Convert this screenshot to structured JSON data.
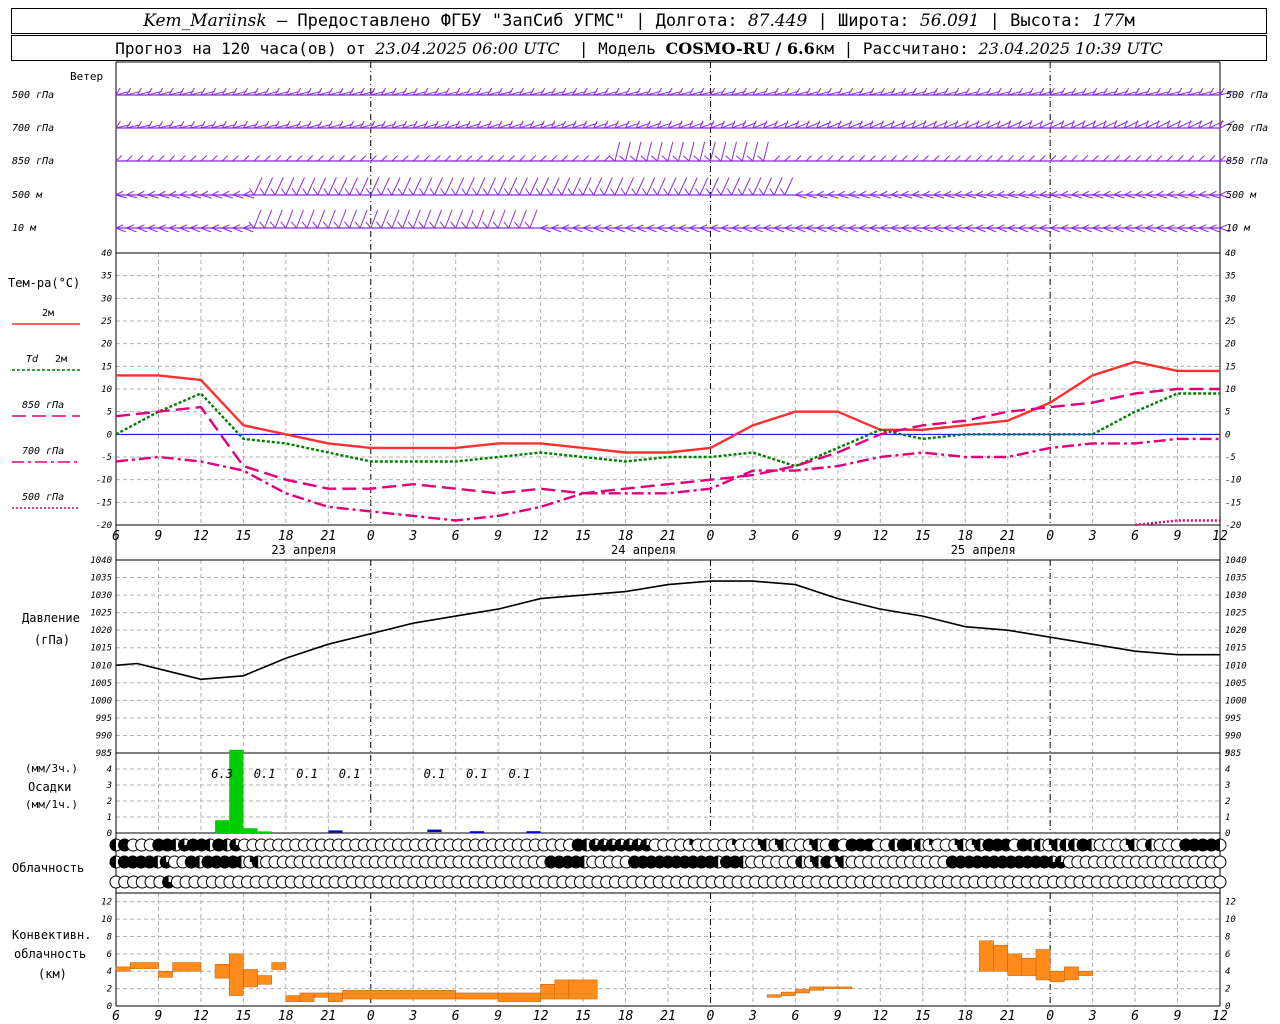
{
  "header": {
    "station": "Kem_Mariinsk",
    "provider": "– Предоставлено ФГБУ \"ЗапСиб УГМС\"",
    "lon_label": "Долгота:",
    "lon": "87.449",
    "lat_label": "Широта:",
    "lat": "56.091",
    "alt_label": "Высота:",
    "alt": "177",
    "alt_unit": "м",
    "forecast_label": "Прогноз на 120 часа(ов) от",
    "forecast_time": "23.04.2025 06:00 UTC",
    "model_label": "Модель",
    "model": "COSMO-RU / 6.6",
    "model_unit": "км",
    "calc_label": "Рассчитано:",
    "calc_time": "23.04.2025 10:39 UTC"
  },
  "labels": {
    "wind": "Ветер",
    "temp": "Тем-ра(°С)",
    "t2m": "2м",
    "td": "Td",
    "td2m": "2м",
    "l850": "850 гПа",
    "l700": "700 гПа",
    "l500": "500 гПа",
    "pressure": "Давление",
    "pressure_unit": "(гПа)",
    "precip_unit1": "(мм/3ч.)",
    "precip": "Осадки",
    "precip_unit2": "(мм/1ч.)",
    "cloud": "Облачность",
    "conv1": "Конвективн.",
    "conv2": "облачность",
    "conv3": "(км)"
  },
  "wind_levels": [
    "500 гПа",
    "700 гПа",
    "850 гПа",
    "500 м",
    "10  м"
  ],
  "time_ticks": [
    "6",
    "9",
    "12",
    "15",
    "18",
    "21",
    "0",
    "3",
    "6",
    "9",
    "12",
    "15",
    "18",
    "21",
    "0",
    "3",
    "6",
    "9",
    "12",
    "15",
    "18",
    "21",
    "0",
    "3",
    "6",
    "9",
    "12"
  ],
  "day_labels": [
    "23 апреля",
    "24 апреля",
    "25 апреля"
  ],
  "colors": {
    "t2m": "#ff3030",
    "td": "#008000",
    "levels": "#e0007a",
    "wind": "#8a2be2",
    "precip_3h": "#00cc00",
    "precip_1h": "#0000cc",
    "convective": "#ff8c1a",
    "zero_line": "#0000ff"
  },
  "chart_data": [
    {
      "type": "line",
      "title": "Тем-ра(°С)",
      "ylim": [
        -20,
        40
      ],
      "yticks": [
        "-20",
        "-15",
        "-10",
        "-5",
        "0",
        "5",
        "10",
        "15",
        "20",
        "25",
        "30",
        "35",
        "40"
      ],
      "x_hours": [
        0,
        3,
        6,
        9,
        12,
        15,
        18,
        21,
        24,
        27,
        30,
        33,
        36,
        39,
        42,
        45,
        48,
        51,
        54,
        57,
        60,
        63,
        66,
        69,
        72,
        75,
        78
      ],
      "series": [
        {
          "name": "2м",
          "values": [
            13,
            13,
            12,
            2,
            0,
            -2,
            -3,
            -3,
            -3,
            -2,
            -2,
            -3,
            -4,
            -4,
            -3,
            2,
            5,
            5,
            1,
            1,
            2,
            3,
            7,
            13,
            16,
            14,
            14
          ]
        },
        {
          "name": "Td 2м",
          "values": [
            0,
            5,
            9,
            -1,
            -2,
            -4,
            -6,
            -6,
            -6,
            -5,
            -4,
            -5,
            -6,
            -5,
            -5,
            -4,
            -7,
            -3,
            1,
            -1,
            0,
            0,
            0,
            0,
            5,
            9,
            9
          ]
        },
        {
          "name": "850 гПа",
          "values": [
            4,
            5,
            6,
            -7,
            -10,
            -12,
            -12,
            -11,
            -12,
            -13,
            -12,
            -13,
            -12,
            -11,
            -10,
            -9,
            -7,
            -4,
            0,
            2,
            3,
            5,
            6,
            7,
            9,
            10,
            10
          ]
        },
        {
          "name": "700 гПа",
          "values": [
            -6,
            -5,
            -6,
            -8,
            -13,
            -16,
            -17,
            -18,
            -19,
            -18,
            -16,
            -13,
            -13,
            -13,
            -12,
            -8,
            -8,
            -7,
            -5,
            -4,
            -5,
            -5,
            -3,
            -2,
            -2,
            -1,
            -1
          ]
        },
        {
          "name": "500 гПа",
          "values": [
            null,
            null,
            null,
            null,
            null,
            null,
            null,
            null,
            null,
            null,
            null,
            null,
            null,
            null,
            null,
            null,
            null,
            null,
            null,
            null,
            null,
            null,
            null,
            null,
            -20,
            -19,
            -19
          ]
        }
      ]
    },
    {
      "type": "line",
      "title": "Давление",
      "ylabel": "(гПа)",
      "ylim": [
        985,
        1040
      ],
      "yticks": [
        "985",
        "990",
        "995",
        "1000",
        "1005",
        "1010",
        "1015",
        "1020",
        "1025",
        "1030",
        "1035",
        "1040"
      ],
      "x_hours": [
        0,
        1.5,
        3,
        6,
        9,
        12,
        15,
        18,
        21,
        24,
        27,
        30,
        33,
        36,
        39,
        42,
        45,
        48,
        51,
        54,
        57,
        60,
        63,
        66,
        69,
        72,
        75,
        78
      ],
      "series": [
        {
          "name": "Давление",
          "values": [
            1010,
            1010.5,
            1009,
            1006,
            1007,
            1012,
            1016,
            1019,
            1022,
            1024,
            1026,
            1029,
            1030,
            1031,
            1033,
            1034,
            1034,
            1033,
            1029,
            1026,
            1024,
            1021,
            1020,
            1018,
            1016,
            1014,
            1013,
            1013
          ]
        }
      ]
    },
    {
      "type": "bar",
      "title": "Осадки",
      "ylim": [
        0,
        5
      ],
      "yticks": [
        "0",
        "1",
        "2",
        "3",
        "4",
        "5"
      ],
      "labels_3h": [
        {
          "hour": 7.5,
          "text": "6.3"
        },
        {
          "hour": 10.5,
          "text": "0.1"
        },
        {
          "hour": 13.5,
          "text": "0.1"
        },
        {
          "hour": 16.5,
          "text": "0.1"
        },
        {
          "hour": 22.5,
          "text": "0.1"
        },
        {
          "hour": 25.5,
          "text": "0.1"
        },
        {
          "hour": 28.5,
          "text": "0.1"
        }
      ],
      "bars_3h": [
        {
          "hour": 7,
          "value": 0.8
        },
        {
          "hour": 8,
          "value": 5.2
        },
        {
          "hour": 9,
          "value": 0.3
        },
        {
          "hour": 10,
          "value": 0.1
        }
      ],
      "bars_1h": [
        {
          "hour": 15,
          "value": 0.1
        },
        {
          "hour": 22,
          "value": 0.15
        },
        {
          "hour": 25,
          "value": 0.05
        },
        {
          "hour": 29,
          "value": 0.05
        }
      ]
    },
    {
      "type": "bar",
      "title": "Конвективн. облачность",
      "ylabel": "(км)",
      "ylim": [
        0,
        13
      ],
      "yticks": [
        "0",
        "2",
        "4",
        "6",
        "8",
        "10",
        "12"
      ],
      "bars": [
        {
          "h0": 0,
          "h1": 1,
          "bottom": 4,
          "top": 4.5
        },
        {
          "h0": 1,
          "h1": 3,
          "bottom": 4.3,
          "top": 5
        },
        {
          "h0": 3,
          "h1": 4,
          "bottom": 3.3,
          "top": 4
        },
        {
          "h0": 4,
          "h1": 6,
          "bottom": 4,
          "top": 5
        },
        {
          "h0": 7,
          "h1": 8,
          "bottom": 3.2,
          "top": 4.8
        },
        {
          "h0": 8,
          "h1": 9,
          "bottom": 1.2,
          "top": 6
        },
        {
          "h0": 9,
          "h1": 10,
          "bottom": 2.2,
          "top": 4.2
        },
        {
          "h0": 10,
          "h1": 11,
          "bottom": 2.5,
          "top": 3.5
        },
        {
          "h0": 11,
          "h1": 12,
          "bottom": 4.2,
          "top": 5
        },
        {
          "h0": 12,
          "h1": 13,
          "bottom": 0.5,
          "top": 1.2
        },
        {
          "h0": 13,
          "h1": 14,
          "bottom": 0.5,
          "top": 1.5
        },
        {
          "h0": 14,
          "h1": 15,
          "bottom": 1,
          "top": 1.5
        },
        {
          "h0": 15,
          "h1": 16,
          "bottom": 0.5,
          "top": 1.5
        },
        {
          "h0": 16,
          "h1": 24,
          "bottom": 0.8,
          "top": 1.8
        },
        {
          "h0": 24,
          "h1": 27,
          "bottom": 0.8,
          "top": 1.5
        },
        {
          "h0": 27,
          "h1": 30,
          "bottom": 0.5,
          "top": 1.5
        },
        {
          "h0": 30,
          "h1": 31,
          "bottom": 0.8,
          "top": 2.5
        },
        {
          "h0": 31,
          "h1": 32,
          "bottom": 0.8,
          "top": 3
        },
        {
          "h0": 32,
          "h1": 34,
          "bottom": 0.8,
          "top": 3
        },
        {
          "h0": 46,
          "h1": 47,
          "bottom": 1,
          "top": 1.3
        },
        {
          "h0": 47,
          "h1": 48,
          "bottom": 1.2,
          "top": 1.6
        },
        {
          "h0": 48,
          "h1": 49,
          "bottom": 1.5,
          "top": 1.9
        },
        {
          "h0": 49,
          "h1": 50,
          "bottom": 1.8,
          "top": 2.2
        },
        {
          "h0": 50,
          "h1": 52,
          "bottom": 2,
          "top": 2.2
        },
        {
          "h0": 61,
          "h1": 62,
          "bottom": 4,
          "top": 7.5
        },
        {
          "h0": 62,
          "h1": 63,
          "bottom": 4,
          "top": 7
        },
        {
          "h0": 63,
          "h1": 64,
          "bottom": 3.5,
          "top": 6
        },
        {
          "h0": 64,
          "h1": 65,
          "bottom": 3.5,
          "top": 5.5
        },
        {
          "h0": 65,
          "h1": 66,
          "bottom": 3,
          "top": 6.5
        },
        {
          "h0": 66,
          "h1": 67,
          "bottom": 2.8,
          "top": 4
        },
        {
          "h0": 67,
          "h1": 68,
          "bottom": 3,
          "top": 4.5
        },
        {
          "h0": 68,
          "h1": 69,
          "bottom": 3.5,
          "top": 4
        }
      ]
    }
  ],
  "cloud_rows": [
    "HFOOOFFHTFFHFHTOOOOOOOOOOOOOOOOOOOOOOOOOOOOOOOOOOOOOOOFHTTTTTTTOOOOQOOOOQOOQHQHOOQHOFOFFFOOHFHHQOOQHQHFFFOFHHQHHHFHOOOQHOHOOOFFFFH",
    "HFFFFHTOOFHFFFFHQHOOOOOOOOOOOOOOOOOOOOOOOOOOOOOOOOOOFFFFHOOOOOFFFFFFFFFFHFFHOOOOOOHQHFQHOOOOOOOOOOOOFFFFFFFFFFFFTTOOOOOOOOOOOOOOOOOOO",
    "OOOOOOTOOOOOOOOOOOOOOOOOOOOOOOOOOOOOOOOOOOOOOOOOOOOOOOOOOOOOOOOOOOOOOOOOOOOOOOOOOOOOOOOOOOOOOOOOOOOOOOOOOOOOOOOOOOOOOOOOOOOOOOO"
  ]
}
